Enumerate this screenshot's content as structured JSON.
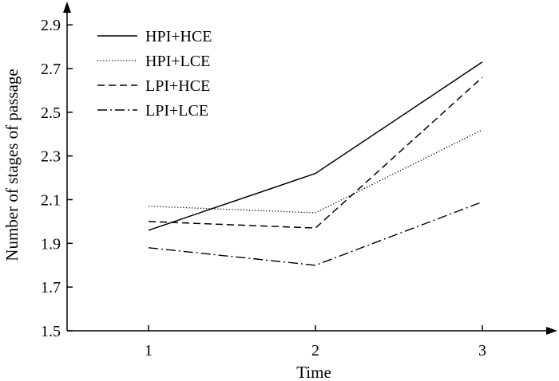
{
  "chart_data": {
    "type": "line",
    "xlabel": "Time",
    "ylabel": "Number of stages of passage",
    "x": [
      1,
      2,
      3
    ],
    "xlim": [
      0.5,
      3.5
    ],
    "ylim": [
      1.5,
      2.97
    ],
    "yticks": [
      1.5,
      1.7,
      1.9,
      2.1,
      2.3,
      2.5,
      2.7,
      2.9
    ],
    "xticks": [
      1,
      2,
      3
    ],
    "ytick_labels": [
      "1.5",
      "1.7",
      "1.9",
      "2.1",
      "2.3",
      "2.5",
      "2.7",
      "2.9"
    ],
    "xtick_labels": [
      "1",
      "2",
      "3"
    ],
    "grid": false,
    "legend_position": "top-left",
    "series": [
      {
        "name": "HPI+HCE",
        "values": [
          1.96,
          2.22,
          2.73
        ],
        "style": "solid"
      },
      {
        "name": "HPI+LCE",
        "values": [
          2.07,
          2.04,
          2.42
        ],
        "style": "dotted"
      },
      {
        "name": "LPI+HCE",
        "values": [
          2.0,
          1.97,
          2.66
        ],
        "style": "dashed"
      },
      {
        "name": "LPI+LCE",
        "values": [
          1.88,
          1.8,
          2.09
        ],
        "style": "dashdot"
      }
    ],
    "line_color": "#000000"
  }
}
